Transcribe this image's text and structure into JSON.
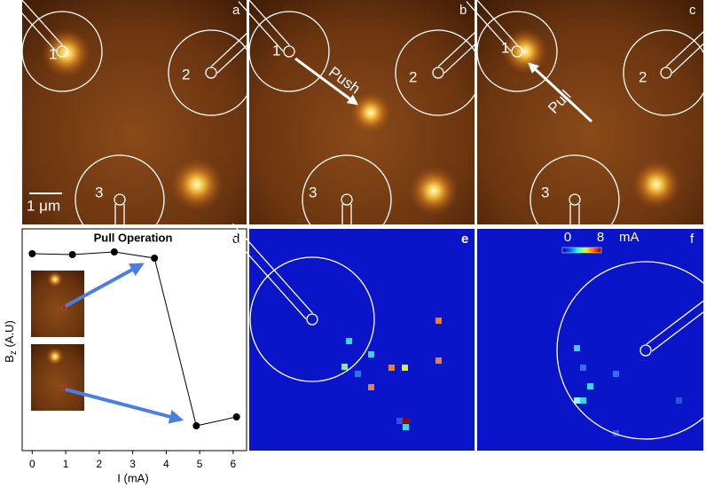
{
  "panels": {
    "a": {
      "label": "a",
      "electrodes": [
        "1",
        "2",
        "3"
      ],
      "scale_bar": "1 μm"
    },
    "b": {
      "label": "b",
      "electrodes": [
        "1",
        "2",
        "3"
      ],
      "annotation": "Push"
    },
    "c": {
      "label": "c",
      "electrodes": [
        "1",
        "2",
        "3"
      ],
      "annotation": "Pull"
    },
    "e": {
      "label": "e"
    },
    "f": {
      "label": "f",
      "colorbar": {
        "min": 0,
        "max": 8,
        "unit": "mA"
      }
    }
  },
  "chart_data": {
    "type": "line",
    "panel_label": "d",
    "title": "Pull Operation",
    "xlabel": "I (mA)",
    "ylabel": {
      "main": "B",
      "sub": "z",
      "rest": " (A.U)"
    },
    "x": [
      0,
      1.2,
      2.45,
      3.65,
      4.9,
      6.1
    ],
    "values": [
      0.888,
      0.884,
      0.896,
      0.868,
      0.112,
      0.152
    ],
    "color": "#000000",
    "xlim": [
      -0.3,
      6.4
    ],
    "xticks": [
      0,
      1,
      2,
      3,
      4,
      5,
      6
    ],
    "ylim": [
      0,
      1
    ]
  }
}
